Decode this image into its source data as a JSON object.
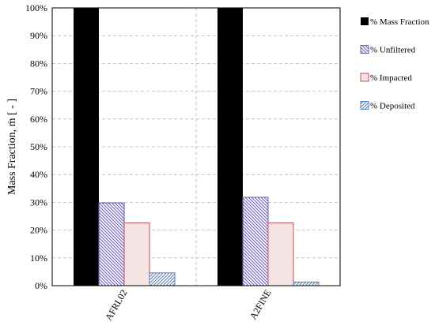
{
  "chart_data": {
    "type": "bar",
    "categories": [
      "AFRL02",
      "A2FINE"
    ],
    "series": [
      {
        "name": "% Mass Fraction",
        "values": [
          100,
          100
        ],
        "color": "#000000",
        "pattern": "solid"
      },
      {
        "name": "% Unfiltered",
        "values": [
          29.8,
          31.8
        ],
        "color": "#6b5aa8",
        "pattern": "diag-down"
      },
      {
        "name": "% Impacted",
        "values": [
          22.6,
          22.6
        ],
        "color": "#c0504d",
        "fill": "#f5e4e3",
        "pattern": "solid-light"
      },
      {
        "name": "% Deposited",
        "values": [
          4.6,
          1.3
        ],
        "color": "#4f81bd",
        "pattern": "diag-up"
      }
    ],
    "y_ticks": [
      "0%",
      "10%",
      "20%",
      "30%",
      "40%",
      "50%",
      "60%",
      "70%",
      "80%",
      "90%",
      "100%"
    ],
    "ylim": [
      0,
      100
    ],
    "ylabel": "Mass Fraction, ṁ [ - ]",
    "xlabel": "",
    "title": "",
    "grid": "dashed",
    "legend_position": "right"
  }
}
